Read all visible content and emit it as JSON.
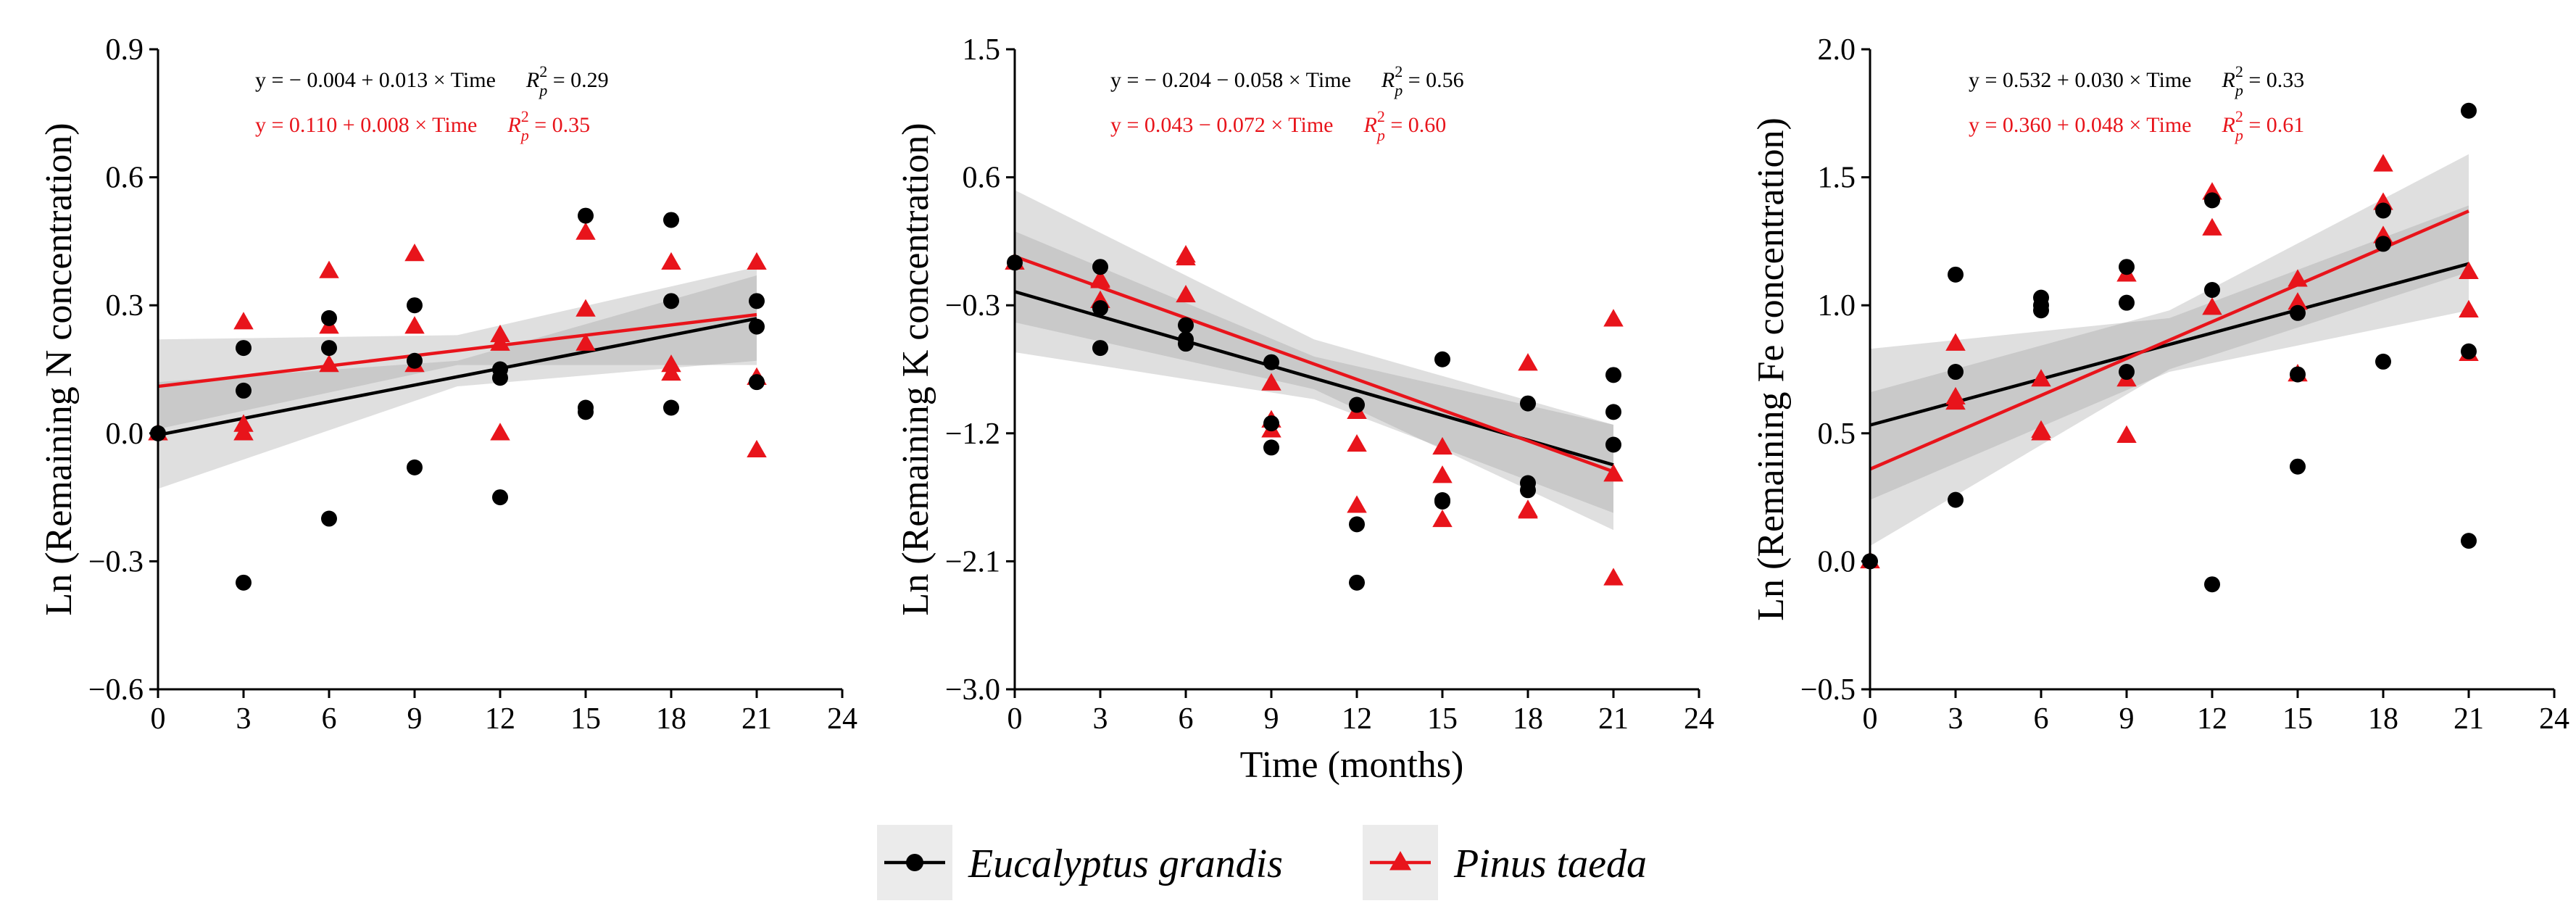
{
  "figure": {
    "xlabel": "Time (months)",
    "legend_position": "bottom-center",
    "series_styles": [
      {
        "name": "Eucalyptus grandis",
        "color": "#000000",
        "marker": "circle"
      },
      {
        "name": "Pinus taeda",
        "color": "#e8141b",
        "marker": "triangle"
      }
    ],
    "ci_color": "#9a9a9a"
  },
  "chart_data": [
    {
      "type": "scatter",
      "title": "",
      "xlabel": "",
      "ylabel": "Ln (Remaining N concentration)",
      "xlim": [
        0,
        24
      ],
      "ylim": [
        -0.6,
        0.9
      ],
      "xticks": [
        "0",
        "3",
        "6",
        "9",
        "12",
        "15",
        "18",
        "21",
        "24"
      ],
      "yticks": [
        "−0.6",
        "−0.3",
        "0.0",
        "0.3",
        "0.6",
        "0.9"
      ],
      "ytick_values": [
        -0.6,
        -0.3,
        0.0,
        0.3,
        0.6,
        0.9
      ],
      "grid": false,
      "series": [
        {
          "name": "Eucalyptus grandis",
          "points": [
            [
              0,
              0
            ],
            [
              3,
              0.2
            ],
            [
              3,
              0.1
            ],
            [
              3,
              -0.35
            ],
            [
              6,
              0.27
            ],
            [
              6,
              0.2
            ],
            [
              6,
              -0.2
            ],
            [
              9,
              0.3
            ],
            [
              9,
              0.17
            ],
            [
              9,
              -0.08
            ],
            [
              12,
              0.15
            ],
            [
              12,
              0.13
            ],
            [
              12,
              -0.15
            ],
            [
              15,
              0.51
            ],
            [
              15,
              0.06
            ],
            [
              15,
              0.05
            ],
            [
              18,
              0.5
            ],
            [
              18,
              0.31
            ],
            [
              18,
              0.06
            ],
            [
              21,
              0.31
            ],
            [
              21,
              0.25
            ],
            [
              21,
              0.12
            ]
          ],
          "fit": {
            "intercept": -0.004,
            "slope": 0.013,
            "ci": {
              "x": [
                0,
                10.5,
                21
              ],
              "lower": [
                -0.13,
                0.11,
                0.17
              ],
              "upper": [
                0.12,
                0.17,
                0.37
              ]
            }
          }
        },
        {
          "name": "Pinus taeda",
          "points": [
            [
              0,
              0
            ],
            [
              3,
              0.26
            ],
            [
              3,
              0.02
            ],
            [
              3,
              0
            ],
            [
              6,
              0.38
            ],
            [
              6,
              0.25
            ],
            [
              6,
              0.16
            ],
            [
              9,
              0.42
            ],
            [
              9,
              0.25
            ],
            [
              9,
              0.16
            ],
            [
              12,
              0.23
            ],
            [
              12,
              0.21
            ],
            [
              12,
              0
            ],
            [
              15,
              0.47
            ],
            [
              15,
              0.29
            ],
            [
              15,
              0.21
            ],
            [
              18,
              0.4
            ],
            [
              18,
              0.16
            ],
            [
              18,
              0.14
            ],
            [
              21,
              0.4
            ],
            [
              21,
              0.13
            ],
            [
              21,
              -0.04
            ]
          ],
          "fit": {
            "intercept": 0.11,
            "slope": 0.008,
            "ci": {
              "x": [
                0,
                10.5,
                21
              ],
              "lower": [
                0.01,
                0.16,
                0.16
              ],
              "upper": [
                0.22,
                0.23,
                0.39
              ]
            }
          }
        }
      ],
      "equations": [
        {
          "series": "Eucalyptus grandis",
          "formula": "y = − 0.004 + 0.013 × Time",
          "r_label": "R",
          "r_sub": "p",
          "r_sup": "2",
          "r_value": " = 0.29"
        },
        {
          "series": "Pinus taeda",
          "formula": "y = 0.110 + 0.008 × Time",
          "r_label": "R",
          "r_sub": "p",
          "r_sup": "2",
          "r_value": " = 0.35"
        }
      ]
    },
    {
      "type": "scatter",
      "title": "",
      "xlabel": "Time (months)",
      "ylabel": "Ln (Remaining K concentration)",
      "xlim": [
        0,
        24
      ],
      "ylim": [
        -3.0,
        1.5
      ],
      "xticks": [
        "0",
        "3",
        "6",
        "9",
        "12",
        "15",
        "18",
        "21",
        "24"
      ],
      "yticks": [
        "−3.0",
        "−2.1",
        "−1.2",
        "−0.3",
        "0.6",
        "1.5"
      ],
      "ytick_values": [
        -3.0,
        -2.1,
        -1.2,
        -0.3,
        0.6,
        1.5
      ],
      "grid": false,
      "series": [
        {
          "name": "Eucalyptus grandis",
          "points": [
            [
              0,
              0
            ],
            [
              3,
              -0.03
            ],
            [
              3,
              -0.32
            ],
            [
              3,
              -0.6
            ],
            [
              6,
              -0.44
            ],
            [
              6,
              -0.54
            ],
            [
              6,
              -0.57
            ],
            [
              9,
              -0.7
            ],
            [
              9,
              -1.13
            ],
            [
              9,
              -1.3
            ],
            [
              12,
              -1.0
            ],
            [
              12,
              -1.84
            ],
            [
              12,
              -2.25
            ],
            [
              15,
              -0.68
            ],
            [
              15,
              -1.67
            ],
            [
              15,
              -1.68
            ],
            [
              18,
              -0.99
            ],
            [
              18,
              -1.55
            ],
            [
              18,
              -1.6
            ],
            [
              21,
              -0.79
            ],
            [
              21,
              -1.05
            ],
            [
              21,
              -1.28
            ]
          ],
          "fit": {
            "intercept": -0.204,
            "slope": -0.058,
            "ci": {
              "x": [
                0,
                10.5,
                21
              ],
              "lower": [
                -0.63,
                -0.96,
                -1.76
              ],
              "upper": [
                0.22,
                -0.66,
                -1.14
              ]
            }
          }
        },
        {
          "name": "Pinus taeda",
          "points": [
            [
              0,
              0
            ],
            [
              3,
              -0.12
            ],
            [
              3,
              -0.13
            ],
            [
              3,
              -0.27
            ],
            [
              6,
              0.05
            ],
            [
              6,
              0.03
            ],
            [
              6,
              -0.23
            ],
            [
              9,
              -0.85
            ],
            [
              9,
              -1.11
            ],
            [
              9,
              -1.18
            ],
            [
              12,
              -1.28
            ],
            [
              12,
              -1.71
            ],
            [
              12,
              -1.05
            ],
            [
              15,
              -1.3
            ],
            [
              15,
              -1.5
            ],
            [
              15,
              -1.81
            ],
            [
              18,
              -0.71
            ],
            [
              18,
              -1.74
            ],
            [
              18,
              -1.75
            ],
            [
              21,
              -0.4
            ],
            [
              21,
              -1.49
            ],
            [
              21,
              -2.22
            ]
          ],
          "fit": {
            "intercept": 0.043,
            "slope": -0.072,
            "ci": {
              "x": [
                0,
                10.5,
                21
              ],
              "lower": [
                -0.42,
                -0.89,
                -1.88
              ],
              "upper": [
                0.51,
                -0.54,
                -1.14
              ]
            }
          }
        }
      ],
      "equations": [
        {
          "series": "Eucalyptus grandis",
          "formula": "y = − 0.204 − 0.058 × Time",
          "r_label": "R",
          "r_sub": "p",
          "r_sup": "2",
          "r_value": " = 0.56"
        },
        {
          "series": "Pinus taeda",
          "formula": "y = 0.043 − 0.072 × Time",
          "r_label": "R",
          "r_sub": "p",
          "r_sup": "2",
          "r_value": " = 0.60"
        }
      ]
    },
    {
      "type": "scatter",
      "title": "",
      "xlabel": "",
      "ylabel": "Ln (Remaining Fe concentration)",
      "xlim": [
        0,
        24
      ],
      "ylim": [
        -0.5,
        2.0
      ],
      "xticks": [
        "0",
        "3",
        "6",
        "9",
        "12",
        "15",
        "18",
        "21",
        "24"
      ],
      "yticks": [
        "−0.5",
        "0.0",
        "0.5",
        "1.0",
        "1.5",
        "2.0"
      ],
      "ytick_values": [
        -0.5,
        0.0,
        0.5,
        1.0,
        1.5,
        2.0
      ],
      "grid": false,
      "series": [
        {
          "name": "Eucalyptus grandis",
          "points": [
            [
              0,
              0
            ],
            [
              3,
              1.12
            ],
            [
              3,
              0.74
            ],
            [
              3,
              0.24
            ],
            [
              6,
              1.03
            ],
            [
              6,
              1.0
            ],
            [
              6,
              0.98
            ],
            [
              9,
              1.15
            ],
            [
              9,
              1.01
            ],
            [
              9,
              0.74
            ],
            [
              12,
              1.41
            ],
            [
              12,
              1.06
            ],
            [
              12,
              -0.09
            ],
            [
              15,
              0.97
            ],
            [
              15,
              0.73
            ],
            [
              15,
              0.37
            ],
            [
              18,
              1.37
            ],
            [
              18,
              1.24
            ],
            [
              18,
              0.78
            ],
            [
              21,
              1.76
            ],
            [
              21,
              0.82
            ],
            [
              21,
              0.08
            ]
          ],
          "fit": {
            "intercept": 0.532,
            "slope": 0.03,
            "ci": {
              "x": [
                0,
                10.5,
                21
              ],
              "lower": [
                0.24,
                0.74,
                0.98
              ],
              "upper": [
                0.83,
                0.95,
                1.39
              ]
            }
          }
        },
        {
          "name": "Pinus taeda",
          "points": [
            [
              0,
              0
            ],
            [
              3,
              0.85
            ],
            [
              3,
              0.64
            ],
            [
              3,
              0.62
            ],
            [
              6,
              0.71
            ],
            [
              6,
              0.51
            ],
            [
              6,
              0.5
            ],
            [
              9,
              1.12
            ],
            [
              9,
              0.71
            ],
            [
              9,
              0.49
            ],
            [
              12,
              1.44
            ],
            [
              12,
              1.3
            ],
            [
              12,
              0.99
            ],
            [
              15,
              1.1
            ],
            [
              15,
              1.01
            ],
            [
              15,
              0.73
            ],
            [
              18,
              1.55
            ],
            [
              18,
              1.4
            ],
            [
              18,
              1.27
            ],
            [
              21,
              1.13
            ],
            [
              21,
              0.98
            ],
            [
              21,
              0.81
            ]
          ],
          "fit": {
            "intercept": 0.36,
            "slope": 0.048,
            "ci": {
              "x": [
                0,
                10.5,
                21
              ],
              "lower": [
                0.06,
                0.75,
                1.13
              ],
              "upper": [
                0.66,
                0.98,
                1.59
              ]
            }
          }
        }
      ],
      "equations": [
        {
          "series": "Eucalyptus grandis",
          "formula": "y = 0.532 + 0.030 × Time",
          "r_label": "R",
          "r_sub": "p",
          "r_sup": "2",
          "r_value": " = 0.33"
        },
        {
          "series": "Pinus taeda",
          "formula": "y = 0.360 + 0.048 × Time",
          "r_label": "R",
          "r_sub": "p",
          "r_sup": "2",
          "r_value": " = 0.61"
        }
      ]
    }
  ],
  "legend": {
    "items": [
      {
        "label": "Eucalyptus grandis",
        "color": "#000000",
        "marker": "circle"
      },
      {
        "label": "Pinus taeda",
        "color": "#e8141b",
        "marker": "triangle"
      }
    ]
  }
}
